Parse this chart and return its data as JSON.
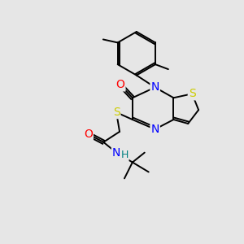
{
  "background_color": "#e6e6e6",
  "atom_colors": {
    "N": "#0000FF",
    "O": "#FF0000",
    "S": "#CCCC00",
    "H": "#008080",
    "C": "#000000"
  },
  "bond_color": "#000000",
  "figure_size": [
    3.0,
    3.0
  ],
  "dpi": 100,
  "lw": 1.4,
  "fs": 10
}
